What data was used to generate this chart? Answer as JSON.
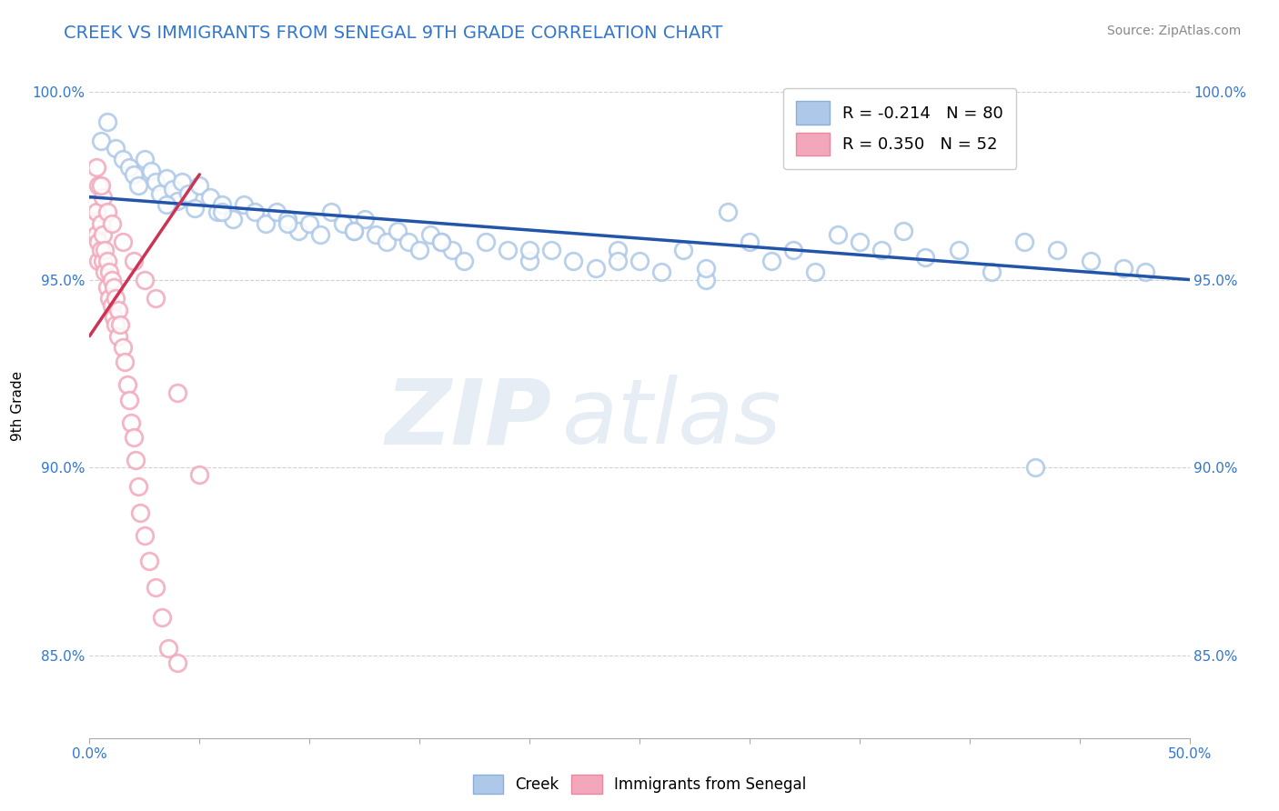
{
  "title": "CREEK VS IMMIGRANTS FROM SENEGAL 9TH GRADE CORRELATION CHART",
  "source_text": "Source: ZipAtlas.com",
  "ylabel": "9th Grade",
  "watermark": "ZIPatlas",
  "xlim": [
    0.0,
    0.5
  ],
  "ylim": [
    0.828,
    1.005
  ],
  "yticks": [
    0.85,
    0.9,
    0.95,
    1.0
  ],
  "ytick_labels": [
    "85.0%",
    "90.0%",
    "95.0%",
    "100.0%"
  ],
  "xticks": [
    0.0,
    0.05,
    0.1,
    0.15,
    0.2,
    0.25,
    0.3,
    0.35,
    0.4,
    0.45,
    0.5
  ],
  "blue_color": "#adc8e8",
  "pink_color": "#f2a8ba",
  "blue_line_color": "#2255aa",
  "pink_line_color": "#cc3355",
  "background_color": "#ffffff",
  "grid_color": "#cccccc",
  "title_color": "#3377cc",
  "source_color": "#888888",
  "ylabel_color": "#000000",
  "tick_color": "#3377cc",
  "legend_blue": "R = -0.214   N = 80",
  "legend_pink": "R = 0.350   N = 52",
  "blue_line_x": [
    0.0,
    0.5
  ],
  "blue_line_y": [
    0.972,
    0.95
  ],
  "pink_line_x": [
    0.0,
    0.05
  ],
  "pink_line_y": [
    0.935,
    0.978
  ],
  "blue_x": [
    0.005,
    0.008,
    0.012,
    0.015,
    0.018,
    0.02,
    0.022,
    0.025,
    0.028,
    0.03,
    0.032,
    0.035,
    0.038,
    0.04,
    0.042,
    0.045,
    0.048,
    0.05,
    0.055,
    0.058,
    0.06,
    0.065,
    0.07,
    0.075,
    0.08,
    0.085,
    0.09,
    0.095,
    0.1,
    0.105,
    0.11,
    0.115,
    0.12,
    0.125,
    0.13,
    0.135,
    0.14,
    0.145,
    0.15,
    0.155,
    0.16,
    0.165,
    0.17,
    0.18,
    0.19,
    0.2,
    0.21,
    0.22,
    0.23,
    0.24,
    0.25,
    0.26,
    0.27,
    0.28,
    0.29,
    0.3,
    0.31,
    0.32,
    0.33,
    0.34,
    0.35,
    0.36,
    0.37,
    0.38,
    0.395,
    0.41,
    0.425,
    0.44,
    0.455,
    0.47,
    0.035,
    0.06,
    0.09,
    0.12,
    0.16,
    0.2,
    0.24,
    0.28,
    0.43,
    0.48
  ],
  "blue_y": [
    0.987,
    0.992,
    0.985,
    0.982,
    0.98,
    0.978,
    0.975,
    0.982,
    0.979,
    0.976,
    0.973,
    0.977,
    0.974,
    0.971,
    0.976,
    0.973,
    0.969,
    0.975,
    0.972,
    0.968,
    0.97,
    0.966,
    0.97,
    0.968,
    0.965,
    0.968,
    0.966,
    0.963,
    0.965,
    0.962,
    0.968,
    0.965,
    0.963,
    0.966,
    0.962,
    0.96,
    0.963,
    0.96,
    0.958,
    0.962,
    0.96,
    0.958,
    0.955,
    0.96,
    0.958,
    0.955,
    0.958,
    0.955,
    0.953,
    0.958,
    0.955,
    0.952,
    0.958,
    0.95,
    0.968,
    0.96,
    0.955,
    0.958,
    0.952,
    0.962,
    0.96,
    0.958,
    0.963,
    0.956,
    0.958,
    0.952,
    0.96,
    0.958,
    0.955,
    0.953,
    0.97,
    0.968,
    0.965,
    0.963,
    0.96,
    0.958,
    0.955,
    0.953,
    0.9,
    0.952
  ],
  "pink_x": [
    0.002,
    0.002,
    0.003,
    0.003,
    0.004,
    0.004,
    0.005,
    0.005,
    0.006,
    0.006,
    0.007,
    0.007,
    0.008,
    0.008,
    0.009,
    0.009,
    0.01,
    0.01,
    0.011,
    0.011,
    0.012,
    0.012,
    0.013,
    0.013,
    0.014,
    0.015,
    0.016,
    0.017,
    0.018,
    0.019,
    0.02,
    0.021,
    0.022,
    0.023,
    0.025,
    0.027,
    0.03,
    0.033,
    0.036,
    0.04,
    0.004,
    0.006,
    0.008,
    0.01,
    0.015,
    0.02,
    0.025,
    0.03,
    0.04,
    0.05,
    0.003,
    0.005
  ],
  "pink_y": [
    0.97,
    0.965,
    0.968,
    0.962,
    0.96,
    0.955,
    0.965,
    0.958,
    0.962,
    0.955,
    0.958,
    0.952,
    0.955,
    0.948,
    0.952,
    0.945,
    0.95,
    0.943,
    0.948,
    0.94,
    0.945,
    0.938,
    0.942,
    0.935,
    0.938,
    0.932,
    0.928,
    0.922,
    0.918,
    0.912,
    0.908,
    0.902,
    0.895,
    0.888,
    0.882,
    0.875,
    0.868,
    0.86,
    0.852,
    0.848,
    0.975,
    0.972,
    0.968,
    0.965,
    0.96,
    0.955,
    0.95,
    0.945,
    0.92,
    0.898,
    0.98,
    0.975
  ]
}
